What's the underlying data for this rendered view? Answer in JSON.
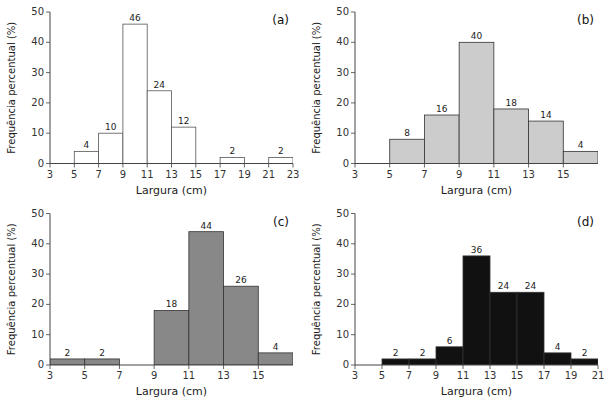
{
  "chart_data": [
    {
      "type": "bar",
      "title": "(a)",
      "xlabel": "Largura (cm)",
      "ylabel": "Frequência percentual (%)",
      "x": [
        6,
        8,
        10,
        12,
        14,
        18,
        22
      ],
      "values": [
        4,
        10,
        46,
        24,
        12,
        2,
        2
      ],
      "color": "white",
      "xlim": [
        3,
        23
      ],
      "xticks": [
        3,
        5,
        7,
        9,
        11,
        13,
        15,
        17,
        19,
        21,
        23
      ],
      "ylim": [
        0,
        50
      ],
      "yticks": [
        0,
        10,
        20,
        30,
        40,
        50
      ],
      "data_labels": true
    },
    {
      "type": "bar",
      "title": "(b)",
      "xlabel": "Largura (cm)",
      "ylabel": "Frequência percentual (%)",
      "x": [
        6,
        8,
        10,
        12,
        14,
        16
      ],
      "values": [
        8,
        16,
        40,
        18,
        14,
        4
      ],
      "color": "#cccccc",
      "xlim": [
        3,
        17
      ],
      "xticks": [
        3,
        5,
        7,
        9,
        11,
        13,
        15
      ],
      "ylim": [
        0,
        50
      ],
      "yticks": [
        0,
        10,
        20,
        30,
        40,
        50
      ],
      "data_labels": true
    },
    {
      "type": "bar",
      "title": "(c)",
      "xlabel": "Largura (cm)",
      "ylabel": "Frequência percentual (%)",
      "x": [
        4,
        6,
        10,
        12,
        14,
        16
      ],
      "values": [
        2,
        2,
        18,
        44,
        26,
        4
      ],
      "color": "#888888",
      "xlim": [
        3,
        17
      ],
      "xticks": [
        3,
        5,
        7,
        9,
        11,
        13,
        15
      ],
      "ylim": [
        0,
        50
      ],
      "yticks": [
        0,
        10,
        20,
        30,
        40,
        50
      ],
      "data_labels": true
    },
    {
      "type": "bar",
      "title": "(d)",
      "xlabel": "Largura (cm)",
      "ylabel": "Frequência percentual (%)",
      "x": [
        6,
        8,
        10,
        12,
        14,
        16,
        18,
        20
      ],
      "values": [
        2,
        2,
        6,
        36,
        24,
        24,
        4,
        2
      ],
      "color": "#111111",
      "xlim": [
        3,
        21
      ],
      "xticks": [
        3,
        5,
        7,
        9,
        11,
        13,
        15,
        17,
        19,
        21
      ],
      "ylim": [
        0,
        50
      ],
      "yticks": [
        0,
        10,
        20,
        30,
        40,
        50
      ],
      "data_labels": true
    }
  ]
}
